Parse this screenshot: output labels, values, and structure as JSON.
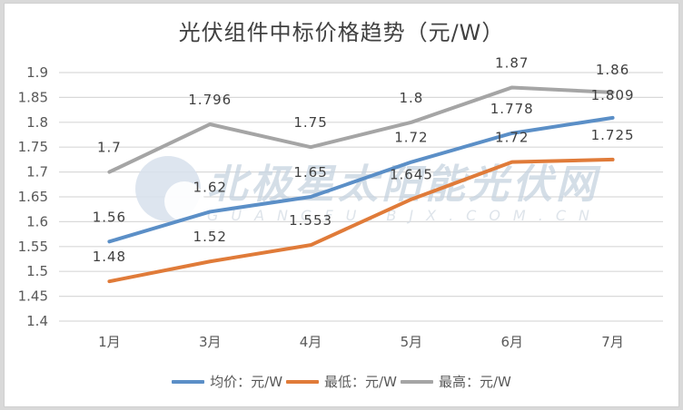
{
  "title": "光伏组件中标价格趋势（元/W）",
  "watermark": {
    "main": "北极星太阳能光伏网",
    "sub": "GUANGFU.BJX.COM.CN"
  },
  "colors": {
    "average": "#5b8fc7",
    "lowest": "#e07b39",
    "highest": "#a5a5a5",
    "grid": "#d9d9d9",
    "text": "#595959"
  },
  "legend": [
    {
      "label": "均价：元/W",
      "color": "#5b8fc7"
    },
    {
      "label": "最低：元/W",
      "color": "#e07b39"
    },
    {
      "label": "最高：元/W",
      "color": "#a5a5a5"
    }
  ],
  "chart_data": {
    "type": "line",
    "title": "光伏组件中标价格趋势（元/W）",
    "xlabel": "",
    "ylabel": "",
    "categories": [
      "1月",
      "3月",
      "4月",
      "5月",
      "6月",
      "7月"
    ],
    "ylim": [
      1.4,
      1.9
    ],
    "yticks": [
      "1.9",
      "1.85",
      "1.8",
      "1.75",
      "1.7",
      "1.65",
      "1.6",
      "1.55",
      "1.5",
      "1.45",
      "1.4"
    ],
    "ytick_values": [
      1.9,
      1.85,
      1.8,
      1.75,
      1.7,
      1.65,
      1.6,
      1.55,
      1.5,
      1.45,
      1.4
    ],
    "grid": true,
    "legend_position": "bottom",
    "series": [
      {
        "name": "均价：元/W",
        "values": [
          1.56,
          1.62,
          1.65,
          1.72,
          1.778,
          1.809
        ],
        "labels": [
          "1.56",
          "1.62",
          "1.65",
          "1.72",
          "1.778",
          "1.809"
        ],
        "color": "#5b8fc7"
      },
      {
        "name": "最低：元/W",
        "values": [
          1.48,
          1.52,
          1.553,
          1.645,
          1.72,
          1.725
        ],
        "labels": [
          "1.48",
          "1.52",
          "1.553",
          "1.645",
          "1.72",
          "1.725"
        ],
        "color": "#e07b39"
      },
      {
        "name": "最高：元/W",
        "values": [
          1.7,
          1.796,
          1.75,
          1.8,
          1.87,
          1.86
        ],
        "labels": [
          "1.7",
          "1.796",
          "1.75",
          "1.8",
          "1.87",
          "1.86"
        ],
        "color": "#a5a5a5"
      }
    ]
  }
}
